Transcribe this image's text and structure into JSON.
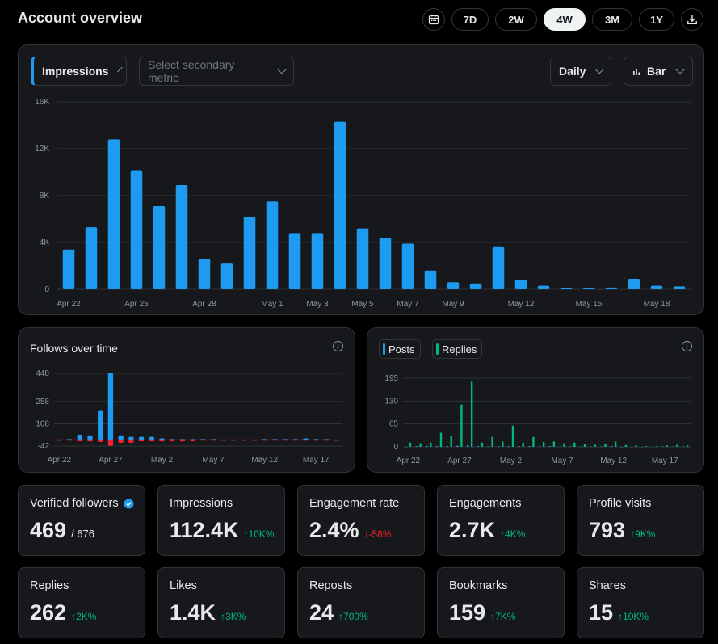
{
  "header": {
    "title": "Account overview",
    "ranges": [
      "7D",
      "2W",
      "4W",
      "3M",
      "1Y"
    ],
    "active_range": "4W",
    "calendar_icon": "calendar-icon",
    "download_icon": "download-icon"
  },
  "main_chart": {
    "primary_metric": "Impressions",
    "secondary_placeholder": "Select secondary metric",
    "interval": "Daily",
    "chart_kind": "Bar"
  },
  "follows_card": {
    "title": "Follows over time"
  },
  "posts_card": {
    "legend": [
      "Posts",
      "Replies"
    ]
  },
  "stats": [
    {
      "label": "Verified followers",
      "value": "469",
      "sub": "/ 676",
      "delta": "",
      "dir": ""
    },
    {
      "label": "Impressions",
      "value": "112.4K",
      "sub": "",
      "delta": "↑10K%",
      "dir": "up"
    },
    {
      "label": "Engagement rate",
      "value": "2.4%",
      "sub": "",
      "delta": "↓-58%",
      "dir": "down"
    },
    {
      "label": "Engagements",
      "value": "2.7K",
      "sub": "",
      "delta": "↑4K%",
      "dir": "up"
    },
    {
      "label": "Profile visits",
      "value": "793",
      "sub": "",
      "delta": "↑9K%",
      "dir": "up"
    },
    {
      "label": "Replies",
      "value": "262",
      "sub": "",
      "delta": "↑2K%",
      "dir": "up"
    },
    {
      "label": "Likes",
      "value": "1.4K",
      "sub": "",
      "delta": "↑3K%",
      "dir": "up"
    },
    {
      "label": "Reposts",
      "value": "24",
      "sub": "",
      "delta": "↑700%",
      "dir": "up"
    },
    {
      "label": "Bookmarks",
      "value": "159",
      "sub": "",
      "delta": "↑7K%",
      "dir": "up"
    },
    {
      "label": "Shares",
      "value": "15",
      "sub": "",
      "delta": "↑10K%",
      "dir": "up"
    }
  ],
  "colors": {
    "accent": "#1d9bf0",
    "replies": "#00ba7c",
    "negative": "#f4212e",
    "positive": "#00ba7c"
  },
  "chart_data": [
    {
      "type": "bar",
      "title": "",
      "series": [
        {
          "name": "Impressions",
          "values": [
            3400,
            5300,
            12800,
            10100,
            7100,
            8900,
            2600,
            2200,
            6200,
            7500,
            4800,
            4800,
            14300,
            5200,
            4400,
            3900,
            1600,
            600,
            500,
            3600,
            800,
            300,
            100,
            100,
            150,
            900,
            300,
            250
          ]
        }
      ],
      "categories": [
        "Apr 22",
        "Apr 23",
        "Apr 24",
        "Apr 25",
        "Apr 26",
        "Apr 27",
        "Apr 28",
        "Apr 29",
        "Apr 30",
        "May 1",
        "May 2",
        "May 3",
        "May 4",
        "May 5",
        "May 6",
        "May 7",
        "May 8",
        "May 9",
        "May 10",
        "May 11",
        "May 12",
        "May 13",
        "May 14",
        "May 15",
        "May 16",
        "May 17",
        "May 18",
        "May 19"
      ],
      "x_tick_labels": [
        "Apr 22",
        "Apr 25",
        "Apr 28",
        "May 1",
        "May 3",
        "May 5",
        "May 7",
        "May 9",
        "May 12",
        "May 15",
        "May 18"
      ],
      "y_ticks": [
        "0",
        "4K",
        "8K",
        "12K",
        "16K"
      ],
      "ylim": [
        0,
        16000
      ],
      "grid": true
    },
    {
      "type": "bar",
      "title": "Follows over time",
      "categories": [
        "Apr 22",
        "Apr 23",
        "Apr 24",
        "Apr 25",
        "Apr 26",
        "Apr 27",
        "Apr 28",
        "Apr 29",
        "Apr 30",
        "May 1",
        "May 2",
        "May 3",
        "May 4",
        "May 5",
        "May 6",
        "May 7",
        "May 8",
        "May 9",
        "May 10",
        "May 11",
        "May 12",
        "May 13",
        "May 14",
        "May 15",
        "May 16",
        "May 17",
        "May 18",
        "May 19"
      ],
      "series": [
        {
          "name": "Follows",
          "values": [
            0,
            5,
            35,
            30,
            195,
            450,
            30,
            20,
            20,
            20,
            10,
            5,
            5,
            5,
            5,
            5,
            0,
            0,
            0,
            0,
            5,
            5,
            5,
            5,
            10,
            5,
            5,
            0
          ]
        },
        {
          "name": "Unfollows",
          "values": [
            -5,
            -5,
            -10,
            -10,
            -15,
            -40,
            -20,
            -20,
            -10,
            -10,
            -10,
            -10,
            -10,
            -10,
            -5,
            -5,
            -5,
            -5,
            -5,
            -5,
            -5,
            -5,
            -5,
            -5,
            -5,
            -5,
            -5,
            -5
          ]
        }
      ],
      "x_tick_labels": [
        "Apr 22",
        "Apr 27",
        "May 2",
        "May 7",
        "May 12",
        "May 17"
      ],
      "y_ticks": [
        "-42",
        "108",
        "258",
        "448"
      ],
      "ylim": [
        -42,
        448
      ]
    },
    {
      "type": "bar",
      "title": "",
      "categories": [
        "Apr 22",
        "Apr 23",
        "Apr 24",
        "Apr 25",
        "Apr 26",
        "Apr 27",
        "Apr 28",
        "Apr 29",
        "Apr 30",
        "May 1",
        "May 2",
        "May 3",
        "May 4",
        "May 5",
        "May 6",
        "May 7",
        "May 8",
        "May 9",
        "May 10",
        "May 11",
        "May 12",
        "May 13",
        "May 14",
        "May 15",
        "May 16",
        "May 17",
        "May 18",
        "May 19"
      ],
      "series": [
        {
          "name": "Posts",
          "values": [
            0,
            2,
            3,
            2,
            2,
            3,
            4,
            2,
            2,
            2,
            2,
            2,
            2,
            1,
            2,
            1,
            1,
            1,
            1,
            1,
            2,
            0,
            0,
            0,
            0,
            1,
            1,
            1
          ]
        },
        {
          "name": "Replies",
          "values": [
            12,
            10,
            12,
            40,
            30,
            120,
            185,
            12,
            28,
            15,
            60,
            12,
            28,
            14,
            15,
            10,
            12,
            8,
            6,
            8,
            15,
            5,
            4,
            2,
            2,
            4,
            6,
            4
          ]
        }
      ],
      "x_tick_labels": [
        "Apr 22",
        "Apr 27",
        "May 2",
        "May 7",
        "May 12",
        "May 17"
      ],
      "y_ticks": [
        "0",
        "65",
        "130",
        "195"
      ],
      "ylim": [
        0,
        195
      ]
    }
  ]
}
